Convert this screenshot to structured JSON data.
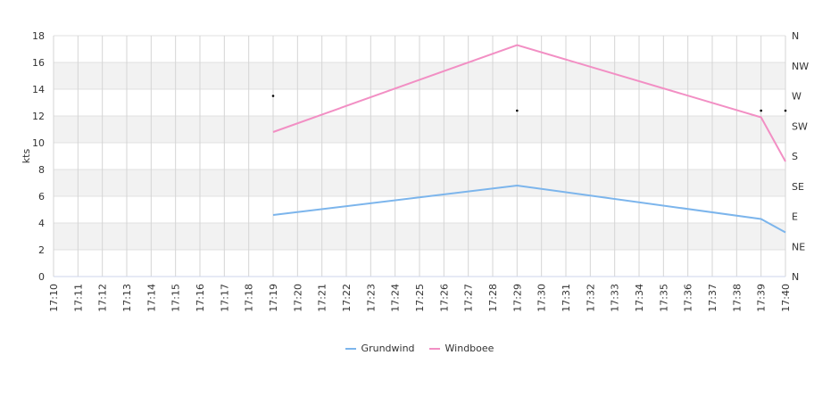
{
  "chart_data": {
    "type": "line",
    "ylabel": "kts",
    "ylim": [
      0,
      18
    ],
    "yticks": [
      "0",
      "2",
      "4",
      "6",
      "8",
      "10",
      "12",
      "14",
      "16",
      "18"
    ],
    "right_axis_labels": [
      "N",
      "NE",
      "E",
      "SE",
      "S",
      "SW",
      "W",
      "NW",
      "N"
    ],
    "categories": [
      "17:10",
      "17:11",
      "17:12",
      "17:13",
      "17:14",
      "17:15",
      "17:16",
      "17:17",
      "17:18",
      "17:19",
      "17:20",
      "17:21",
      "17:22",
      "17:23",
      "17:24",
      "17:25",
      "17:26",
      "17:27",
      "17:28",
      "17:29",
      "17:30",
      "17:31",
      "17:32",
      "17:33",
      "17:34",
      "17:35",
      "17:36",
      "17:37",
      "17:38",
      "17:39",
      "17:40"
    ],
    "series": [
      {
        "name": "Grundwind",
        "color": "#7cb5ec",
        "points": [
          [
            9,
            4.6
          ],
          [
            19,
            6.8
          ],
          [
            29,
            4.3
          ],
          [
            30,
            3.3
          ]
        ]
      },
      {
        "name": "Windboee",
        "color": "#f28fc4",
        "points": [
          [
            9,
            10.8
          ],
          [
            19,
            17.3
          ],
          [
            29,
            11.9
          ],
          [
            30,
            8.6
          ]
        ]
      }
    ],
    "direction_markers": [
      [
        9,
        13.5
      ],
      [
        19,
        12.4
      ],
      [
        29,
        12.4
      ],
      [
        30,
        12.4
      ]
    ],
    "grid": true,
    "legend_position": "bottom-center"
  }
}
